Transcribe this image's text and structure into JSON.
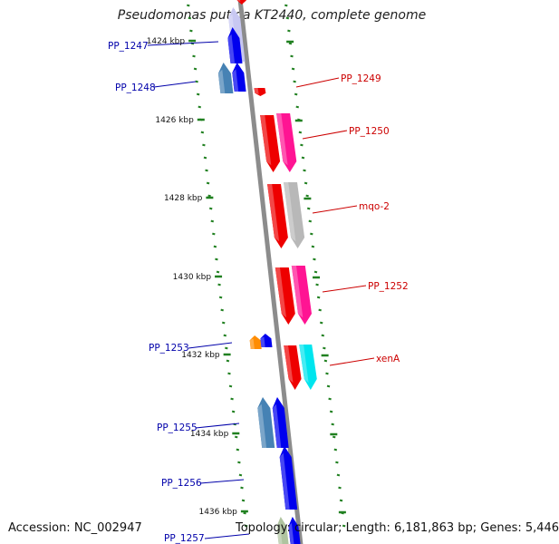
{
  "title": "Pseudomonas putida KT2440, complete genome",
  "accession": "Accession: NC_002947",
  "topology": "Topology: circular; Length: 6,181,863 bp; Genes: 5,446",
  "ticks": [
    {
      "label": "1424 kbp"
    },
    {
      "label": "1426 kbp"
    },
    {
      "label": "1428 kbp"
    },
    {
      "label": "1430 kbp"
    },
    {
      "label": "1432 kbp"
    },
    {
      "label": "1434 kbp"
    },
    {
      "label": "1436 kbp"
    }
  ],
  "genes": [
    {
      "label": "PP_1247",
      "strand": "minus",
      "color": "#0000ee"
    },
    {
      "label": "PP_1248",
      "strand": "minus",
      "color": "#0000ee"
    },
    {
      "label": "PP_1249",
      "strand": "plus",
      "color": "#ee0000"
    },
    {
      "label": "PP_1250",
      "strand": "plus",
      "color": "#ee0000"
    },
    {
      "label": "mqo-2",
      "strand": "plus",
      "color": "#ee0000"
    },
    {
      "label": "PP_1252",
      "strand": "plus",
      "color": "#ee0000"
    },
    {
      "label": "PP_1253",
      "strand": "minus",
      "color": "#0000ee"
    },
    {
      "label": "xenA",
      "strand": "plus",
      "color": "#ee0000"
    },
    {
      "label": "PP_1255",
      "strand": "minus",
      "color": "#0000ee"
    },
    {
      "label": "PP_1256",
      "strand": "minus",
      "color": "#0000ee"
    },
    {
      "label": "PP_1257",
      "strand": "minus",
      "color": "#0000ee"
    }
  ],
  "colors": {
    "backbone": "#8c8c8c",
    "tick": "#208020",
    "plus_cds": "#ee0000",
    "minus_cds": "#0000ee",
    "plus_label": "#cc0000",
    "minus_label": "#0000aa",
    "magenta_feature": "#ff1493",
    "grey_feature": "#b8b8b8",
    "cyan_feature": "#00e5ee",
    "steel_feature": "#4682b4",
    "orange_feature": "#ff8c00"
  }
}
